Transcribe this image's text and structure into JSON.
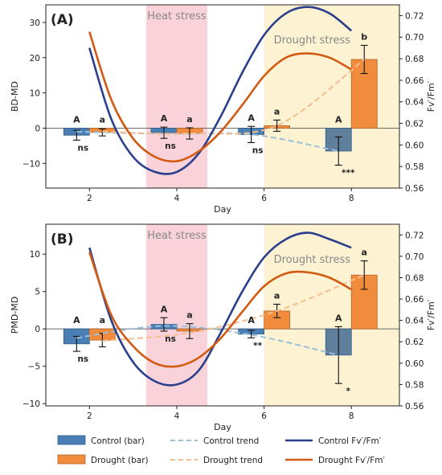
{
  "colors": {
    "control_bar": "#4a7fb5",
    "control_bar_edge": "#2f5d8a",
    "control_bar_day8": "#5f7f9c",
    "drought_bar": "#f08c3c",
    "drought_bar_edge": "#b5652a",
    "control_trend": "#9cc0d8",
    "drought_trend": "#f5bf8f",
    "control_fv": "#2b3f8c",
    "drought_fv": "#d25a12",
    "heat_band": "#f9d3d9",
    "drought_band": "#fdf3d3"
  },
  "legend": {
    "items": [
      {
        "label": "Control (bar)",
        "kind": "bar",
        "color_key": "control_bar"
      },
      {
        "label": "Control trend",
        "kind": "dash",
        "color_key": "control_trend"
      },
      {
        "label": "Control Fv′/Fm′",
        "kind": "line",
        "color_key": "control_fv"
      },
      {
        "label": "Drought (bar)",
        "kind": "bar",
        "color_key": "drought_bar"
      },
      {
        "label": "Drought trend",
        "kind": "dash",
        "color_key": "drought_trend"
      },
      {
        "label": "Drought Fv′/Fm′",
        "kind": "line",
        "color_key": "drought_fv"
      }
    ]
  },
  "chart_data": [
    {
      "type": "bar",
      "panel_label": "(A)",
      "xlabel": "Day",
      "ylabel": "BD-MD",
      "y2label": "Fv′/Fm′",
      "categories": [
        2,
        4,
        6,
        8
      ],
      "ylim": [
        -17,
        35
      ],
      "y_ticks": [
        -10,
        0,
        10,
        20,
        30
      ],
      "y2lim": [
        0.56,
        0.73
      ],
      "y2_ticks": [
        0.56,
        0.58,
        0.6,
        0.62,
        0.64,
        0.66,
        0.68,
        0.7,
        0.72
      ],
      "xlim": [
        1.0,
        9.1
      ],
      "heat_band": {
        "label": "Heat stress",
        "from": 3.3,
        "to": 4.7
      },
      "drought_band": {
        "label": "Drought stress",
        "from": 6.0,
        "to": 9.1
      },
      "series": [
        {
          "name": "Control (bar)",
          "values": [
            -2.0,
            -1.3,
            -1.8,
            -6.5
          ],
          "errors": [
            1.4,
            1.6,
            2.3,
            4.0
          ],
          "letters": [
            "A",
            "A",
            "A",
            "A"
          ]
        },
        {
          "name": "Drought (bar)",
          "values": [
            -1.2,
            -1.5,
            0.7,
            19.5
          ],
          "errors": [
            1.0,
            1.6,
            1.6,
            4.0
          ],
          "letters": [
            "a",
            "a",
            "a",
            "b"
          ]
        }
      ],
      "significance": [
        "ns",
        "ns",
        "ns",
        "***"
      ],
      "control_trend": {
        "x": [
          2,
          4,
          6,
          8
        ],
        "y": [
          -1.0,
          -1.6,
          -1.8,
          -6.5
        ]
      },
      "drought_trend": {
        "x": [
          2,
          4,
          6,
          8
        ],
        "y": [
          -1.0,
          -1.5,
          0.7,
          19.5
        ]
      },
      "control_fv": {
        "x": [
          2.0,
          2.5,
          3.0,
          3.5,
          4.0,
          4.5,
          5.0,
          5.5,
          6.0,
          6.5,
          7.0,
          7.5,
          8.0
        ],
        "y": [
          0.69,
          0.624,
          0.589,
          0.575,
          0.575,
          0.592,
          0.626,
          0.667,
          0.702,
          0.722,
          0.728,
          0.722,
          0.706
        ]
      },
      "drought_fv": {
        "x": [
          2.0,
          2.5,
          3.0,
          3.5,
          4.0,
          4.5,
          5.0,
          5.5,
          6.0,
          6.5,
          7.0,
          7.5,
          8.0
        ],
        "y": [
          0.705,
          0.642,
          0.606,
          0.589,
          0.585,
          0.594,
          0.612,
          0.637,
          0.664,
          0.681,
          0.685,
          0.681,
          0.67
        ]
      }
    },
    {
      "type": "bar",
      "panel_label": "(B)",
      "xlabel": "Day",
      "ylabel": "PMD-MD",
      "y2label": "Fv′/Fm′",
      "categories": [
        2,
        4,
        6,
        8
      ],
      "ylim": [
        -10.3,
        14
      ],
      "y_ticks": [
        -10,
        -5,
        0,
        5,
        10
      ],
      "y2lim": [
        0.56,
        0.73
      ],
      "y2_ticks": [
        0.56,
        0.58,
        0.6,
        0.62,
        0.64,
        0.66,
        0.68,
        0.7,
        0.72
      ],
      "xlim": [
        1.0,
        9.1
      ],
      "heat_band": {
        "label": "Heat stress",
        "from": 3.3,
        "to": 4.7
      },
      "drought_band": {
        "label": "Drought stress",
        "from": 6.0,
        "to": 9.1
      },
      "series": [
        {
          "name": "Control (bar)",
          "values": [
            -2.0,
            0.6,
            -0.7,
            -3.5
          ],
          "errors": [
            1.0,
            0.9,
            0.5,
            3.8
          ],
          "letters": [
            "A",
            "A",
            "A",
            "A"
          ]
        },
        {
          "name": "Drought (bar)",
          "values": [
            -1.5,
            -0.3,
            2.4,
            7.2
          ],
          "errors": [
            0.9,
            1.0,
            0.9,
            1.9
          ],
          "letters": [
            "a",
            "a",
            "a",
            "a"
          ]
        }
      ],
      "significance": [
        "ns",
        "ns",
        "**",
        "*"
      ],
      "control_trend": {
        "x": [
          2,
          4,
          6,
          8
        ],
        "y": [
          -1.2,
          0.4,
          -0.8,
          -3.5
        ]
      },
      "drought_trend": {
        "x": [
          2,
          4,
          6,
          8
        ],
        "y": [
          -1.6,
          -0.5,
          2.4,
          7.2
        ]
      },
      "control_fv": {
        "x": [
          2.0,
          2.5,
          3.0,
          3.5,
          4.0,
          4.5,
          5.0,
          5.5,
          6.0,
          6.5,
          7.0,
          7.5,
          8.0
        ],
        "y": [
          0.708,
          0.64,
          0.601,
          0.583,
          0.58,
          0.593,
          0.628,
          0.667,
          0.699,
          0.716,
          0.722,
          0.716,
          0.708
        ]
      },
      "drought_fv": {
        "x": [
          2.0,
          2.5,
          3.0,
          3.5,
          4.0,
          4.5,
          5.0,
          5.5,
          6.0,
          6.5,
          7.0,
          7.5,
          8.0
        ],
        "y": [
          0.704,
          0.645,
          0.616,
          0.6,
          0.597,
          0.605,
          0.623,
          0.648,
          0.672,
          0.684,
          0.685,
          0.68,
          0.669
        ]
      }
    }
  ]
}
